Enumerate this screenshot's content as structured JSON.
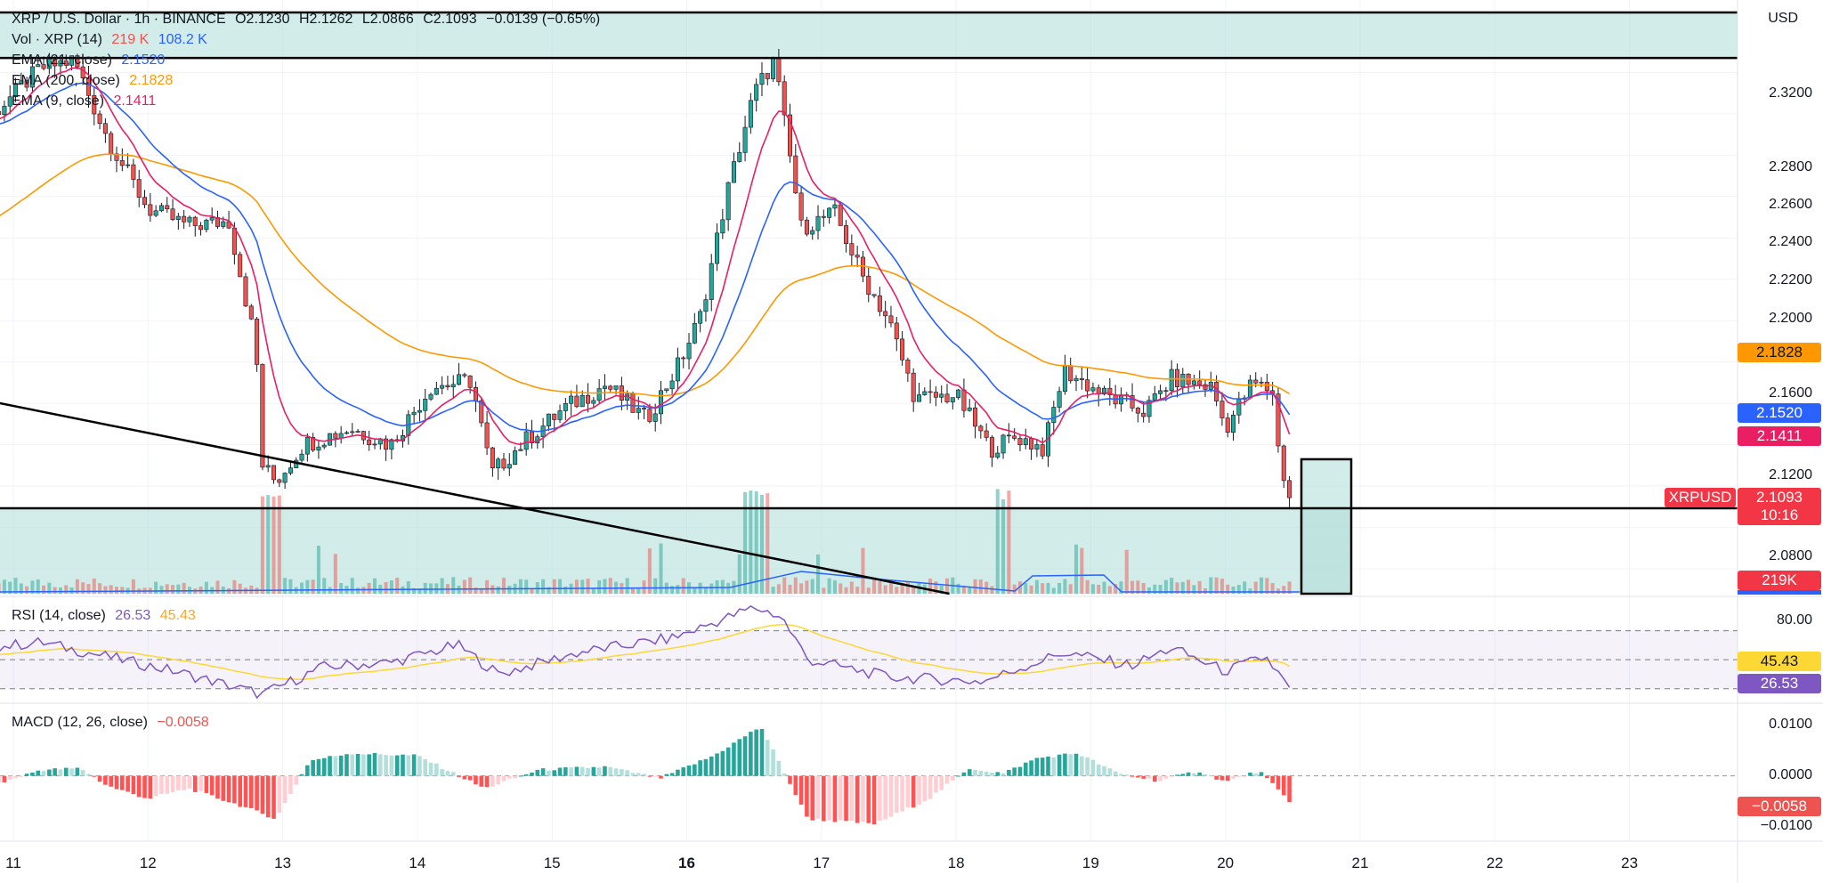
{
  "header": {
    "title": "XRP / U.S. Dollar · 1h · BINANCE",
    "ohlc": [
      "O2.1230",
      "H2.1262",
      "L2.0866",
      "C2.1093",
      "−0.0139 (−0.65%)"
    ],
    "currency": "USD"
  },
  "legend": {
    "vol": {
      "label": "Vol · XRP (14)",
      "v1": "219 K",
      "v2": "108.2 K"
    },
    "ema21": {
      "label": "EMA (21, close)",
      "value": "2.1520"
    },
    "ema200": {
      "label": "EMA (200, close)",
      "value": "2.1828"
    },
    "ema9": {
      "label": "EMA (9, close)",
      "value": "2.1411"
    }
  },
  "rsi_legend": {
    "label": "RSI (14, close)",
    "v1": "26.53",
    "v2": "45.43"
  },
  "macd_legend": {
    "label": "MACD (12, 26, close)",
    "value": "−0.0058"
  },
  "price_axis": {
    "ticks": [
      "2.3200",
      "2.2800",
      "2.2600",
      "2.2400",
      "2.2200",
      "2.2000",
      "2.1600",
      "2.1200",
      "2.0800"
    ],
    "labels": {
      "ema200": "2.1828",
      "ema21": "2.1520",
      "ema9": "2.1411",
      "symbol": "XRPUSD",
      "last": "2.1093",
      "countdown": "10:16",
      "volume": "219K"
    }
  },
  "rsi_axis": {
    "ticks": [
      "80.00"
    ],
    "labels": {
      "signal": "45.43",
      "rsi": "26.53"
    }
  },
  "macd_axis": {
    "ticks": [
      "0.0100",
      "0.0000",
      "−0.0100"
    ],
    "labels": {
      "macd": "−0.0058"
    }
  },
  "x_axis": {
    "labels": [
      "11",
      "12",
      "13",
      "14",
      "15",
      "16",
      "17",
      "18",
      "19",
      "20",
      "21",
      "22",
      "23"
    ],
    "bold": "16"
  },
  "colors": {
    "up": "#26a69a",
    "down": "#ef5350",
    "ema9": "#e91e63",
    "ema21": "#2962ff",
    "ema200": "#ff9800",
    "rsi": "#7e57c2",
    "rsi_ma": "#fdd835",
    "zone": "#b2dfdb"
  },
  "chart_data": [
    {
      "type": "candlestick",
      "title": "XRP / U.S. Dollar · 1h · BINANCE",
      "ylim": [
        2.068,
        2.352
      ],
      "x_ticks": [
        "11",
        "12",
        "13",
        "14",
        "15",
        "16",
        "17",
        "18",
        "19",
        "20",
        "21",
        "22",
        "23"
      ],
      "x_range_days": [
        10.6,
        23.7
      ],
      "close_path": [
        {
          "day": 10.6,
          "price": 2.296
        },
        {
          "day": 10.85,
          "price": 2.3
        },
        {
          "day": 11.2,
          "price": 2.322
        },
        {
          "day": 11.45,
          "price": 2.326
        },
        {
          "day": 11.7,
          "price": 2.288
        },
        {
          "day": 12.0,
          "price": 2.254
        },
        {
          "day": 12.3,
          "price": 2.246
        },
        {
          "day": 12.6,
          "price": 2.248
        },
        {
          "day": 12.7,
          "price": 2.218
        },
        {
          "day": 12.8,
          "price": 2.188
        },
        {
          "day": 12.85,
          "price": 2.13
        },
        {
          "day": 12.95,
          "price": 2.122
        },
        {
          "day": 13.15,
          "price": 2.14
        },
        {
          "day": 13.5,
          "price": 2.148
        },
        {
          "day": 13.8,
          "price": 2.14
        },
        {
          "day": 14.1,
          "price": 2.168
        },
        {
          "day": 14.4,
          "price": 2.171
        },
        {
          "day": 14.55,
          "price": 2.126
        },
        {
          "day": 14.8,
          "price": 2.142
        },
        {
          "day": 15.1,
          "price": 2.158
        },
        {
          "day": 15.4,
          "price": 2.169
        },
        {
          "day": 15.7,
          "price": 2.152
        },
        {
          "day": 15.95,
          "price": 2.18
        },
        {
          "day": 16.1,
          "price": 2.202
        },
        {
          "day": 16.3,
          "price": 2.262
        },
        {
          "day": 16.5,
          "price": 2.31
        },
        {
          "day": 16.65,
          "price": 2.326
        },
        {
          "day": 16.85,
          "price": 2.245
        },
        {
          "day": 17.1,
          "price": 2.252
        },
        {
          "day": 17.3,
          "price": 2.222
        },
        {
          "day": 17.5,
          "price": 2.2
        },
        {
          "day": 17.7,
          "price": 2.162
        },
        {
          "day": 18.0,
          "price": 2.164
        },
        {
          "day": 18.25,
          "price": 2.138
        },
        {
          "day": 18.45,
          "price": 2.144
        },
        {
          "day": 18.65,
          "price": 2.138
        },
        {
          "day": 18.8,
          "price": 2.176
        },
        {
          "day": 19.1,
          "price": 2.164
        },
        {
          "day": 19.4,
          "price": 2.156
        },
        {
          "day": 19.6,
          "price": 2.172
        },
        {
          "day": 19.9,
          "price": 2.168
        },
        {
          "day": 20.0,
          "price": 2.148
        },
        {
          "day": 20.2,
          "price": 2.17
        },
        {
          "day": 20.35,
          "price": 2.166
        },
        {
          "day": 20.4,
          "price": 2.133
        },
        {
          "day": 20.5,
          "price": 2.1093
        }
      ],
      "overlays": [
        {
          "name": "EMA (9, close)",
          "last": 2.1411
        },
        {
          "name": "EMA (21, close)",
          "last": 2.152
        },
        {
          "name": "EMA (200, close)",
          "last": 2.1828
        }
      ],
      "horizontal_lines": [
        2.349,
        2.327,
        2.1093
      ],
      "trendline": [
        {
          "day": 10.6,
          "price": 2.164
        },
        {
          "day": 17.95,
          "price": 2.068
        }
      ],
      "last": 2.1093
    },
    {
      "type": "line",
      "title": "RSI (14, close)",
      "ylim": [
        20,
        90
      ],
      "bands": [
        70,
        50,
        30
      ],
      "series": [
        {
          "name": "RSI (14, close)",
          "last": 26.53
        },
        {
          "name": "RSI-based MA",
          "last": 45.43
        }
      ],
      "rsi_path": [
        {
          "day": 10.6,
          "rsi": 56
        },
        {
          "day": 11.2,
          "rsi": 62
        },
        {
          "day": 11.7,
          "rsi": 52
        },
        {
          "day": 12.2,
          "rsi": 42
        },
        {
          "day": 12.85,
          "rsi": 26
        },
        {
          "day": 13.3,
          "rsi": 45
        },
        {
          "day": 13.8,
          "rsi": 48
        },
        {
          "day": 14.3,
          "rsi": 60
        },
        {
          "day": 14.6,
          "rsi": 40
        },
        {
          "day": 15.2,
          "rsi": 55
        },
        {
          "day": 15.9,
          "rsi": 65
        },
        {
          "day": 16.5,
          "rsi": 86
        },
        {
          "day": 16.7,
          "rsi": 80
        },
        {
          "day": 16.9,
          "rsi": 50
        },
        {
          "day": 17.5,
          "rsi": 38
        },
        {
          "day": 18.2,
          "rsi": 35
        },
        {
          "day": 18.8,
          "rsi": 55
        },
        {
          "day": 19.3,
          "rsi": 46
        },
        {
          "day": 19.6,
          "rsi": 58
        },
        {
          "day": 20.0,
          "rsi": 42
        },
        {
          "day": 20.3,
          "rsi": 52
        },
        {
          "day": 20.5,
          "rsi": 26.53
        }
      ]
    },
    {
      "type": "bar",
      "title": "MACD (12, 26, close)",
      "ylim": [
        -0.0115,
        0.0135
      ],
      "last": -0.0058,
      "histogram_path": [
        {
          "day": 10.6,
          "value": -0.0005
        },
        {
          "day": 10.9,
          "value": -0.0015
        },
        {
          "day": 11.2,
          "value": 0.0012
        },
        {
          "day": 11.5,
          "value": 0.0015
        },
        {
          "day": 11.7,
          "value": -0.002
        },
        {
          "day": 12.0,
          "value": -0.0045
        },
        {
          "day": 12.3,
          "value": -0.0025
        },
        {
          "day": 12.7,
          "value": -0.006
        },
        {
          "day": 12.95,
          "value": -0.0085
        },
        {
          "day": 13.2,
          "value": 0.003
        },
        {
          "day": 13.5,
          "value": 0.0045
        },
        {
          "day": 14.0,
          "value": 0.004
        },
        {
          "day": 14.5,
          "value": -0.0025
        },
        {
          "day": 14.9,
          "value": 0.0012
        },
        {
          "day": 15.4,
          "value": 0.0018
        },
        {
          "day": 15.8,
          "value": -0.0005
        },
        {
          "day": 16.2,
          "value": 0.004
        },
        {
          "day": 16.55,
          "value": 0.0098
        },
        {
          "day": 16.9,
          "value": -0.0085
        },
        {
          "day": 17.4,
          "value": -0.0095
        },
        {
          "day": 17.8,
          "value": -0.0045
        },
        {
          "day": 18.1,
          "value": 0.0015
        },
        {
          "day": 18.35,
          "value": 0.0005
        },
        {
          "day": 18.6,
          "value": 0.0035
        },
        {
          "day": 18.9,
          "value": 0.0045
        },
        {
          "day": 19.2,
          "value": 0.0005
        },
        {
          "day": 19.5,
          "value": -0.001
        },
        {
          "day": 19.8,
          "value": 0.001
        },
        {
          "day": 20.0,
          "value": -0.0012
        },
        {
          "day": 20.25,
          "value": 0.001
        },
        {
          "day": 20.5,
          "value": -0.0058
        }
      ]
    }
  ]
}
